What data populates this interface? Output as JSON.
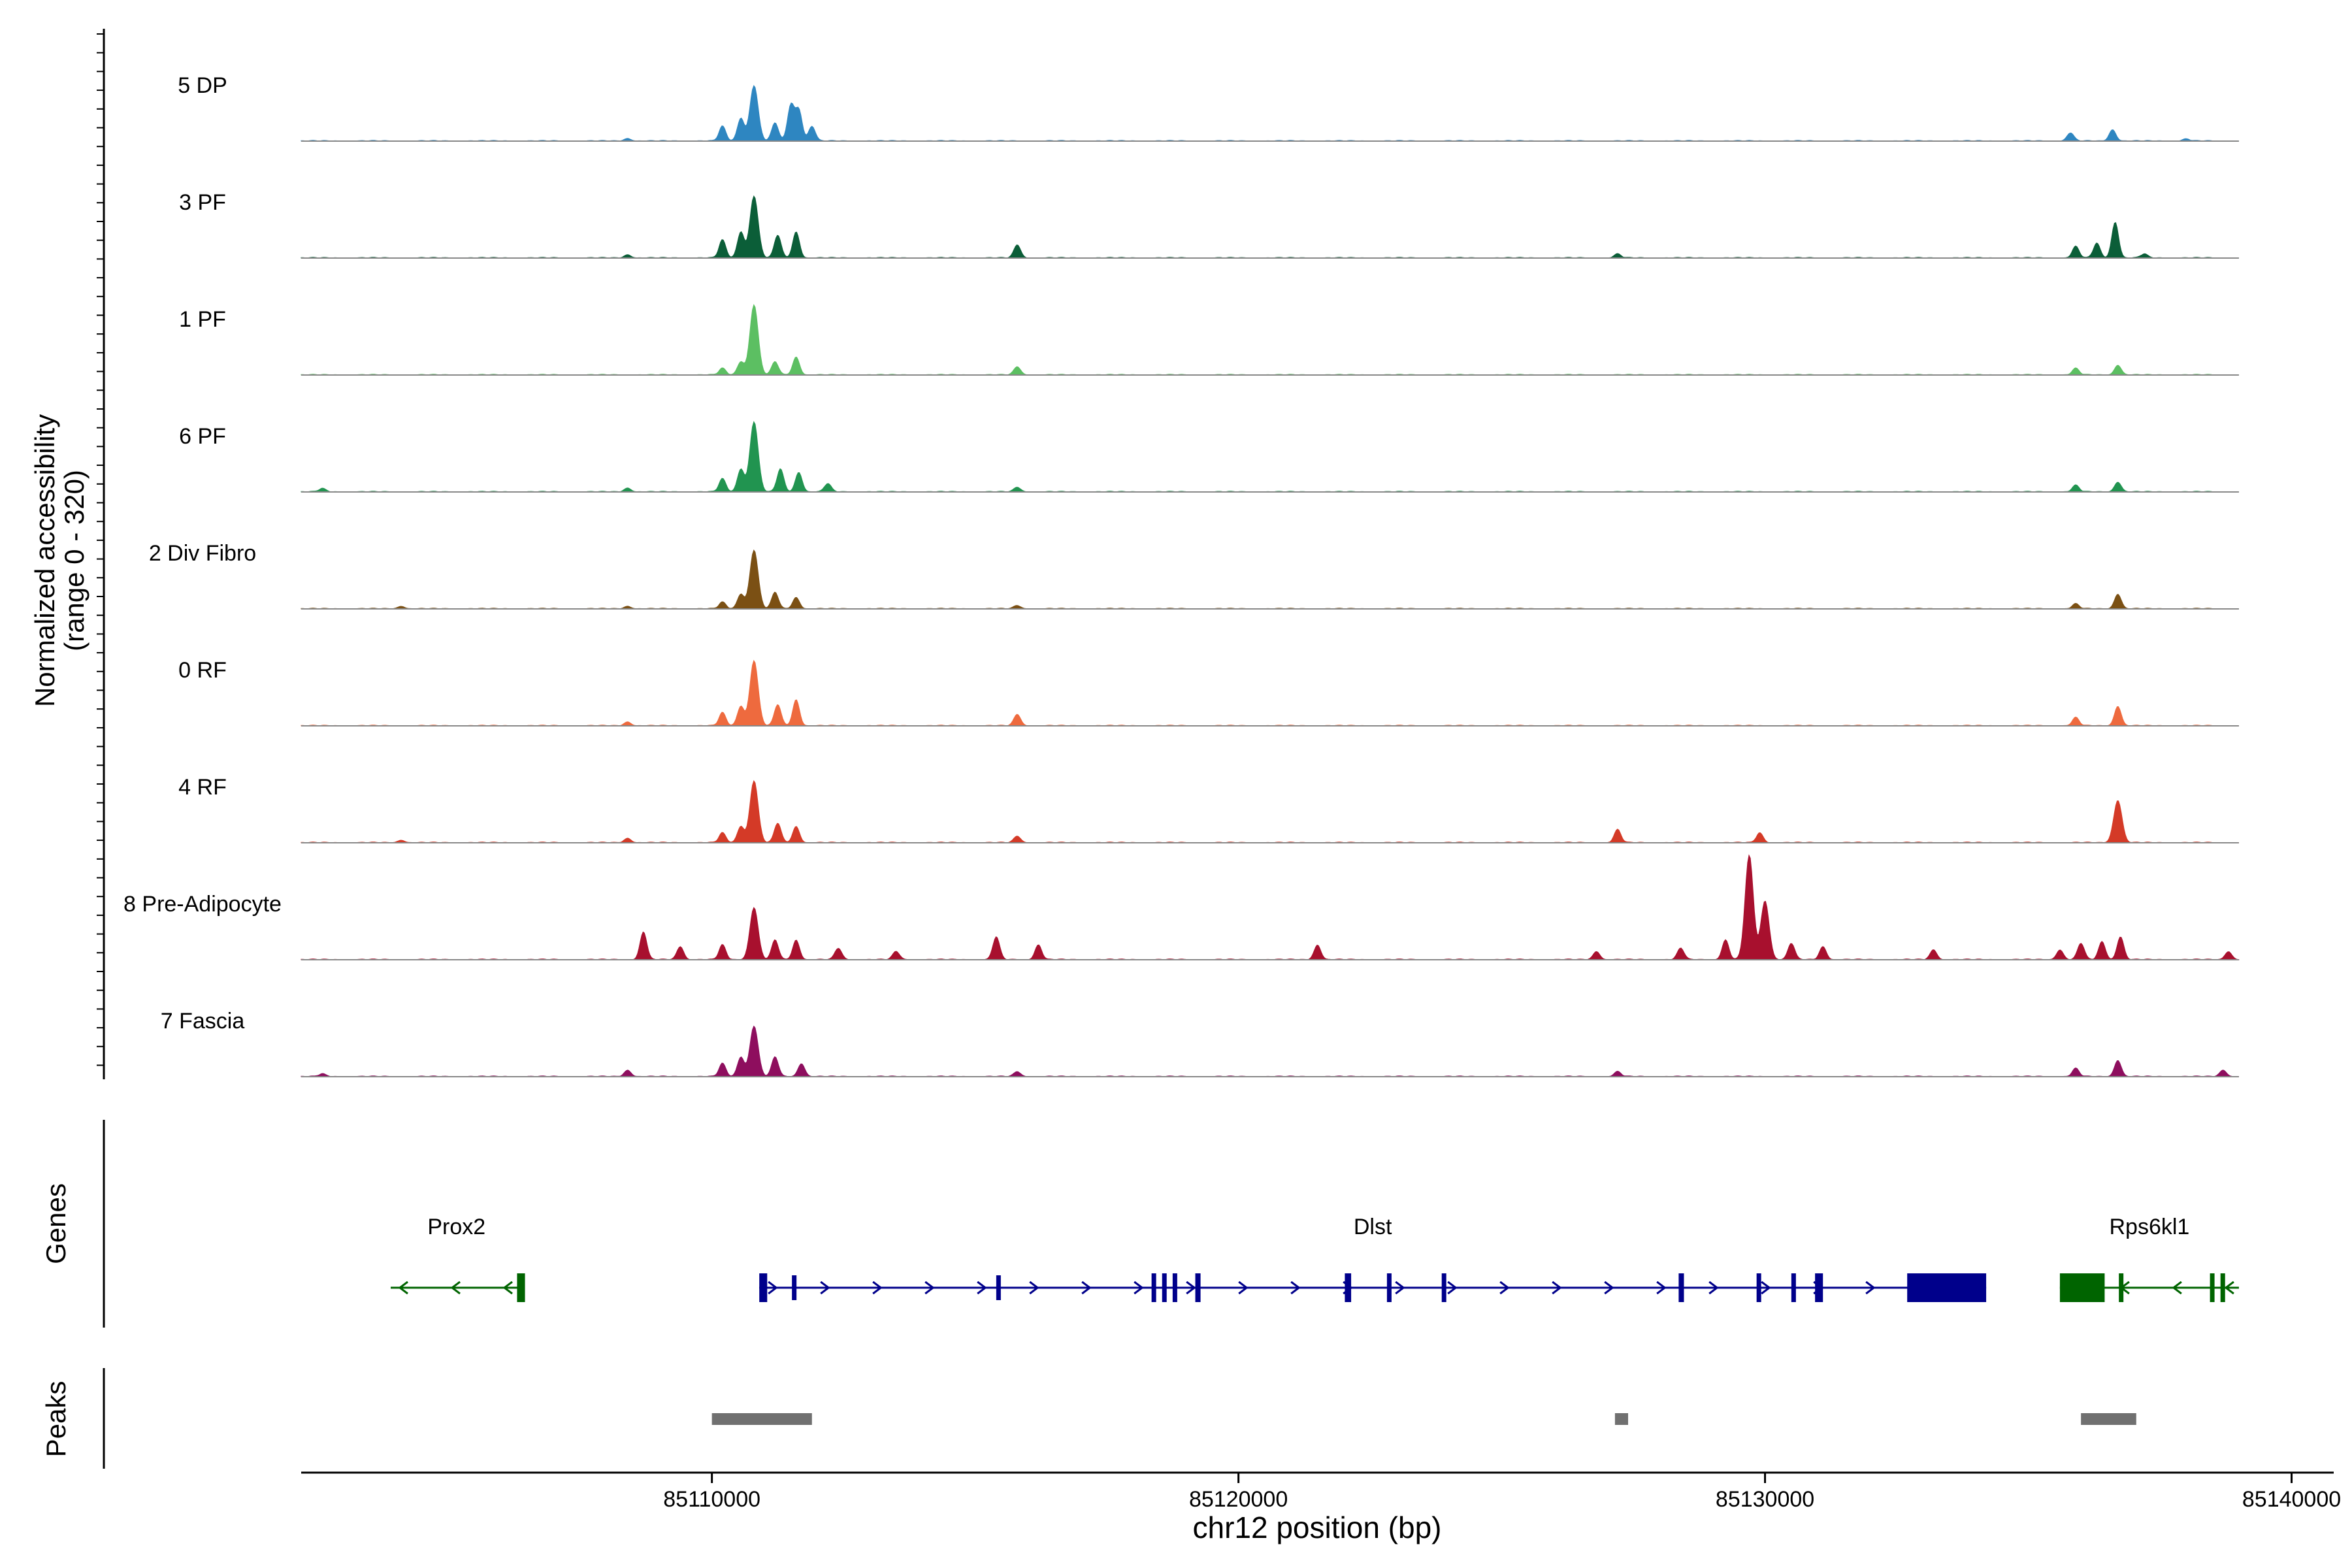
{
  "chart_data": {
    "type": "area",
    "ylabel_line1": "Normalized accessibility",
    "ylabel_line2": "(range 0 - 320)",
    "xlabel": "chr12 position (bp)",
    "ylim": [
      0,
      320
    ],
    "xlim": [
      85102200,
      85140800
    ],
    "x_ticks": [
      85110000,
      85120000,
      85130000,
      85140000
    ],
    "x_tick_labels": [
      "85110000",
      "85120000",
      "85130000",
      "85140000"
    ],
    "track_x_range": [
      85102200,
      85139000
    ],
    "tracks": [
      {
        "name": "5 DP",
        "color": "#2E86C1",
        "peaks": [
          [
            85108400,
            8
          ],
          [
            85110200,
            45
          ],
          [
            85110550,
            70
          ],
          [
            85110800,
            170
          ],
          [
            85111200,
            55
          ],
          [
            85111500,
            110
          ],
          [
            85111650,
            95
          ],
          [
            85111900,
            45
          ],
          [
            85135800,
            25
          ],
          [
            85136600,
            35
          ],
          [
            85138000,
            6
          ]
        ]
      },
      {
        "name": "3 PF",
        "color": "#0B5E38",
        "peaks": [
          [
            85108400,
            10
          ],
          [
            85110200,
            55
          ],
          [
            85110550,
            80
          ],
          [
            85110800,
            190
          ],
          [
            85111250,
            70
          ],
          [
            85111600,
            80
          ],
          [
            85115800,
            40
          ],
          [
            85127200,
            12
          ],
          [
            85135900,
            35
          ],
          [
            85136300,
            45
          ],
          [
            85136650,
            110
          ],
          [
            85137200,
            12
          ]
        ]
      },
      {
        "name": "1 PF",
        "color": "#5CBF62",
        "peaks": [
          [
            85110200,
            20
          ],
          [
            85110550,
            40
          ],
          [
            85110800,
            215
          ],
          [
            85111200,
            40
          ],
          [
            85111600,
            55
          ],
          [
            85115800,
            25
          ],
          [
            85135900,
            20
          ],
          [
            85136700,
            30
          ]
        ]
      },
      {
        "name": "6 PF",
        "color": "#219450",
        "peaks": [
          [
            85102600,
            10
          ],
          [
            85108400,
            12
          ],
          [
            85110200,
            40
          ],
          [
            85110550,
            70
          ],
          [
            85110800,
            215
          ],
          [
            85111300,
            70
          ],
          [
            85111650,
            60
          ],
          [
            85112200,
            25
          ],
          [
            85115800,
            14
          ],
          [
            85135900,
            20
          ],
          [
            85136700,
            30
          ]
        ]
      },
      {
        "name": "2 Div Fibro",
        "color": "#7B5014",
        "peaks": [
          [
            85104100,
            8
          ],
          [
            85108400,
            8
          ],
          [
            85110200,
            20
          ],
          [
            85110550,
            45
          ],
          [
            85110800,
            180
          ],
          [
            85111200,
            50
          ],
          [
            85111600,
            35
          ],
          [
            85115800,
            10
          ],
          [
            85135900,
            15
          ],
          [
            85136700,
            45
          ]
        ]
      },
      {
        "name": "0 RF",
        "color": "#EE6A3E",
        "peaks": [
          [
            85108400,
            12
          ],
          [
            85110200,
            40
          ],
          [
            85110550,
            60
          ],
          [
            85110800,
            200
          ],
          [
            85111250,
            65
          ],
          [
            85111600,
            80
          ],
          [
            85115800,
            35
          ],
          [
            85135900,
            25
          ],
          [
            85136700,
            60
          ]
        ]
      },
      {
        "name": "4 RF",
        "color": "#D43A27",
        "peaks": [
          [
            85104100,
            8
          ],
          [
            85108400,
            14
          ],
          [
            85110200,
            30
          ],
          [
            85110550,
            50
          ],
          [
            85110800,
            190
          ],
          [
            85111250,
            60
          ],
          [
            85111600,
            50
          ],
          [
            85115800,
            20
          ],
          [
            85127200,
            40
          ],
          [
            85129900,
            30
          ],
          [
            85136700,
            130
          ]
        ]
      },
      {
        "name": "8 Pre-Adipocyte",
        "color": "#A8102E",
        "peaks": [
          [
            85108700,
            85
          ],
          [
            85109400,
            40
          ],
          [
            85110200,
            45
          ],
          [
            85110800,
            160
          ],
          [
            85111200,
            60
          ],
          [
            85111600,
            60
          ],
          [
            85112400,
            35
          ],
          [
            85113500,
            25
          ],
          [
            85115400,
            70
          ],
          [
            85116200,
            45
          ],
          [
            85121500,
            45
          ],
          [
            85126800,
            25
          ],
          [
            85128400,
            35
          ],
          [
            85129250,
            60
          ],
          [
            85129700,
            320
          ],
          [
            85130000,
            180
          ],
          [
            85130500,
            50
          ],
          [
            85131100,
            40
          ],
          [
            85133200,
            30
          ],
          [
            85135600,
            30
          ],
          [
            85136000,
            50
          ],
          [
            85136400,
            55
          ],
          [
            85136750,
            70
          ],
          [
            85138800,
            25
          ]
        ]
      },
      {
        "name": "7 Fascia",
        "color": "#8E0E5E",
        "peaks": [
          [
            85102600,
            8
          ],
          [
            85108400,
            20
          ],
          [
            85110200,
            40
          ],
          [
            85110550,
            60
          ],
          [
            85110800,
            155
          ],
          [
            85111200,
            60
          ],
          [
            85111700,
            40
          ],
          [
            85115800,
            15
          ],
          [
            85127200,
            15
          ],
          [
            85135900,
            25
          ],
          [
            85136700,
            50
          ],
          [
            85138700,
            20
          ]
        ]
      }
    ]
  },
  "genes_panel": {
    "label": "Genes",
    "genes": [
      {
        "name": "Prox2",
        "strand": "-",
        "color": "#006400",
        "start": 85103900,
        "end": 85106400,
        "exons": [
          [
            85106300,
            85106450
          ]
        ]
      },
      {
        "name": "Dlst",
        "strand": "+",
        "color": "#00008B",
        "start": 85110900,
        "end": 85134200,
        "exons": [
          [
            85110900,
            85111050
          ],
          [
            85111520,
            85111540
          ],
          [
            85115400,
            85115420
          ],
          [
            85118350,
            85118420
          ],
          [
            85118550,
            85118620
          ],
          [
            85118750,
            85118820
          ],
          [
            85119180,
            85119280
          ],
          [
            85122020,
            85122140
          ],
          [
            85122820,
            85122880
          ],
          [
            85123860,
            85123920
          ],
          [
            85128360,
            85128460
          ],
          [
            85129840,
            85129920
          ],
          [
            85130500,
            85130560
          ],
          [
            85130950,
            85131100
          ],
          [
            85132700,
            85134200
          ]
        ]
      },
      {
        "name": "Rps6kl1",
        "strand": "-",
        "color": "#006400",
        "start": 85135600,
        "end": 85139000,
        "exons": [
          [
            85135600,
            85136450
          ],
          [
            85136720,
            85136800
          ],
          [
            85138450,
            85138520
          ],
          [
            85138650,
            85138720
          ]
        ]
      }
    ]
  },
  "peaks_panel": {
    "label": "Peaks",
    "color": "#707070",
    "regions": [
      [
        85110000,
        85111900
      ],
      [
        85127150,
        85127400
      ],
      [
        85136000,
        85137050
      ]
    ]
  }
}
